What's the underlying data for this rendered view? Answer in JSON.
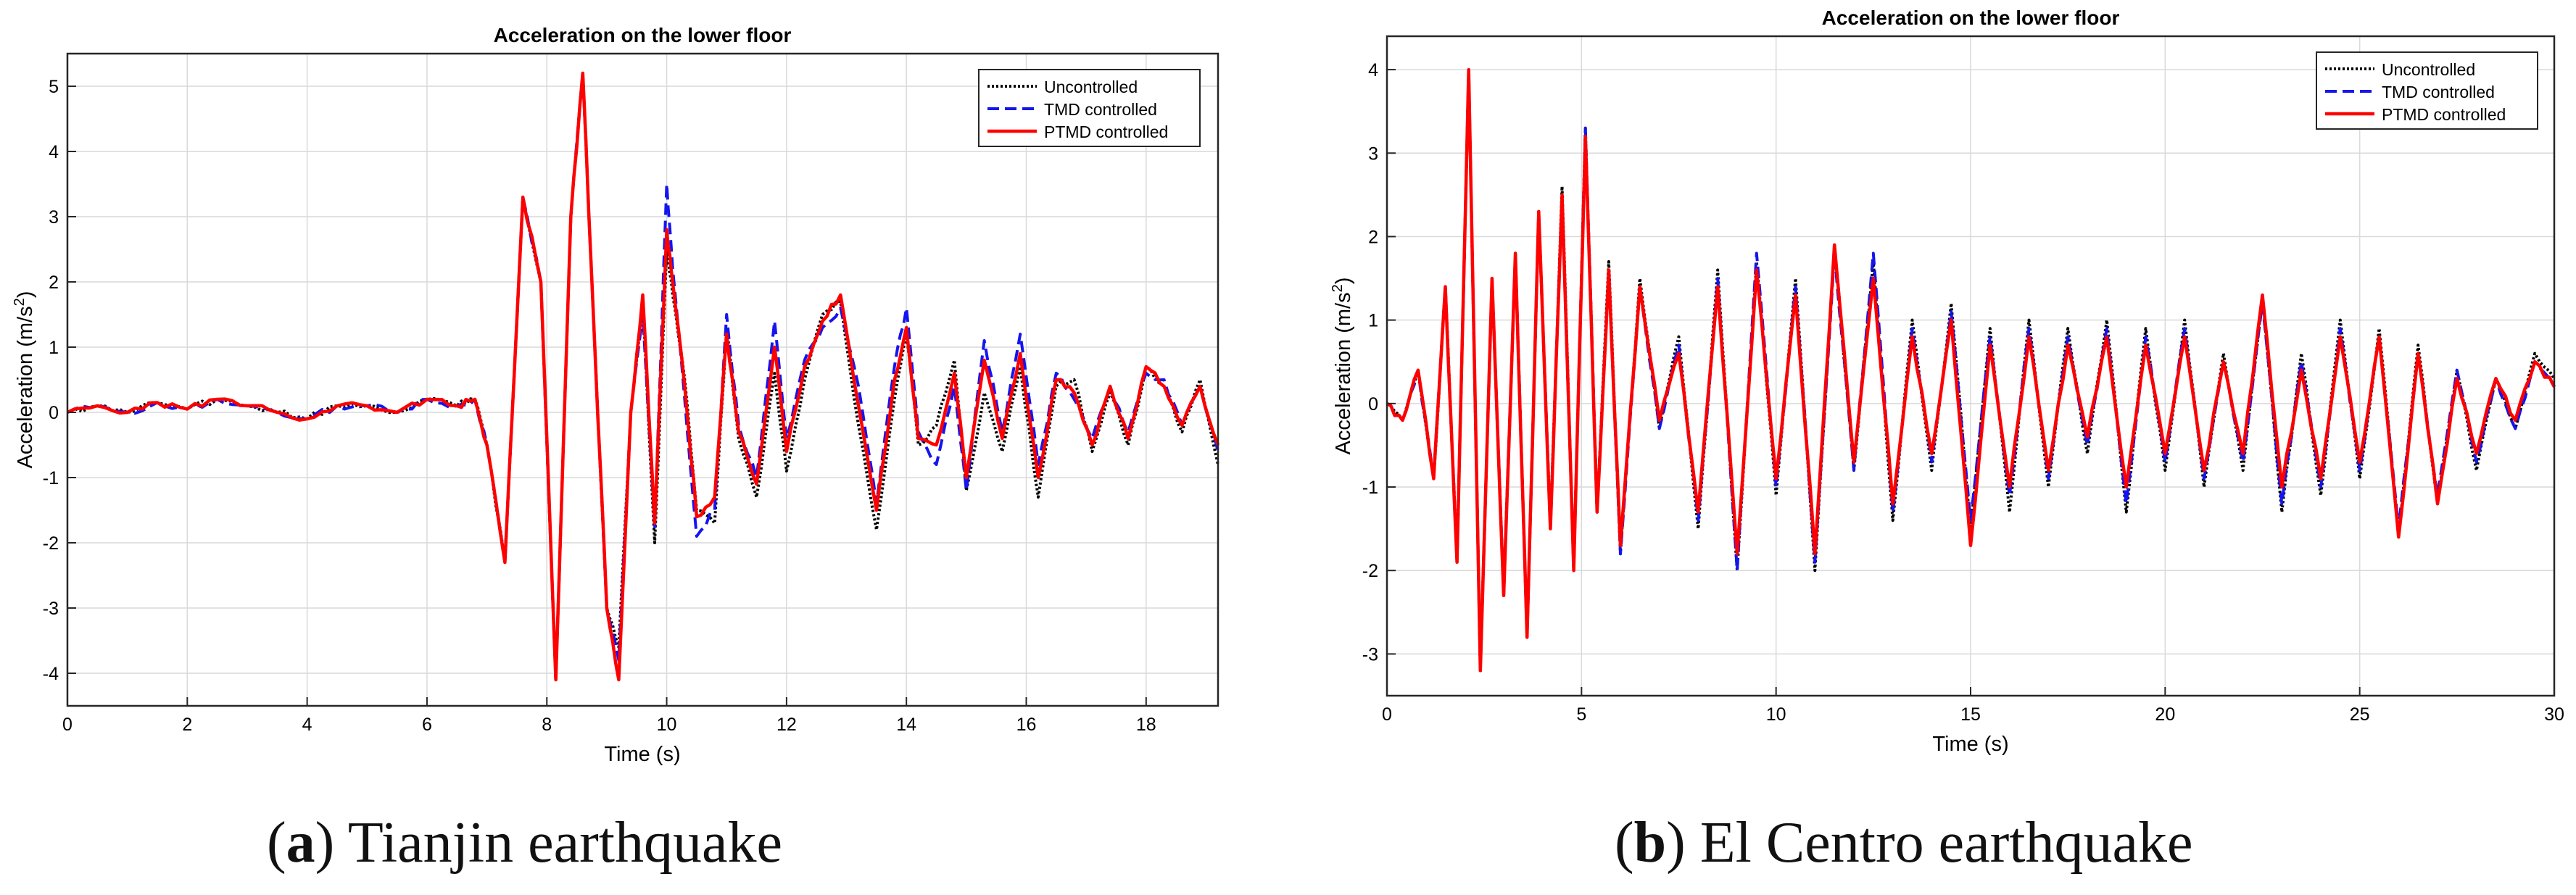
{
  "colors": {
    "uncontrolled": "#000000",
    "tmd": "#1515ee",
    "ptmd": "#ff0000",
    "grid": "#d9d9d9",
    "axis": "#262626"
  },
  "captions": [
    {
      "label": "a",
      "text": ") Tianjin earthquake"
    },
    {
      "label": "b",
      "text": ") El Centro earthquake"
    }
  ],
  "chart_data": [
    {
      "type": "line",
      "title": "Acceleration on the lower floor",
      "xlabel": "Time (s)",
      "ylabel_main": "Acceleration (m/s",
      "ylabel_sup": "2",
      "ylabel_tail": ")",
      "xlim": [
        0,
        19.2
      ],
      "ylim": [
        -4.5,
        5.5
      ],
      "xticks": [
        0,
        2,
        4,
        6,
        8,
        10,
        12,
        14,
        16,
        18
      ],
      "yticks": [
        -4,
        -3,
        -2,
        -1,
        0,
        1,
        2,
        3,
        4,
        5
      ],
      "grid": true,
      "legend_position": "top-right",
      "legend": [
        "Uncontrolled",
        "TMD controlled",
        "PTMD controlled"
      ],
      "series": [
        {
          "name": "Uncontrolled",
          "style": "dotted",
          "x": [
            0,
            0.5,
            1,
            1.5,
            2,
            2.5,
            3,
            3.5,
            4,
            4.5,
            5,
            5.5,
            6,
            6.5,
            6.8,
            7,
            7.3,
            7.6,
            7.9,
            8.15,
            8.4,
            8.6,
            8.8,
            9,
            9.2,
            9.4,
            9.6,
            9.8,
            10,
            10.1,
            10.3,
            10.5,
            10.8,
            11,
            11.2,
            11.5,
            11.8,
            12,
            12.3,
            12.6,
            12.9,
            13.2,
            13.5,
            13.8,
            14,
            14.2,
            14.5,
            14.8,
            15,
            15.3,
            15.6,
            15.9,
            16.2,
            16.5,
            16.8,
            17.1,
            17.4,
            17.7,
            18,
            18.3,
            18.6,
            18.9,
            19.2
          ],
          "y": [
            0,
            0.1,
            0,
            0.15,
            0.05,
            0.2,
            0.1,
            0,
            -0.1,
            0.1,
            0.1,
            0,
            0.2,
            0.1,
            0.2,
            -0.5,
            -2.3,
            3.3,
            2,
            -4.1,
            3,
            5.2,
            1,
            -3,
            -3.6,
            0,
            1.7,
            -2,
            2.5,
            1.8,
            0.5,
            -1.5,
            -1.7,
            1.3,
            -0.4,
            -1.3,
            0.6,
            -0.9,
            0.5,
            1.5,
            1.7,
            -0.2,
            -1.8,
            0.2,
            1.2,
            -0.5,
            -0.2,
            0.8,
            -1.2,
            0.3,
            -0.6,
            0.7,
            -1.3,
            0.4,
            0.5,
            -0.6,
            0.3,
            -0.5,
            0.7,
            0.4,
            -0.3,
            0.5,
            -0.8
          ]
        },
        {
          "name": "TMD controlled",
          "style": "dashed",
          "x": [
            0,
            0.5,
            1,
            1.5,
            2,
            2.5,
            3,
            3.5,
            4,
            4.5,
            5,
            5.5,
            6,
            6.5,
            6.8,
            7,
            7.3,
            7.6,
            7.9,
            8.15,
            8.4,
            8.6,
            8.8,
            9,
            9.2,
            9.4,
            9.6,
            9.8,
            10,
            10.1,
            10.3,
            10.5,
            10.8,
            11,
            11.2,
            11.5,
            11.8,
            12,
            12.3,
            12.6,
            12.9,
            13.2,
            13.5,
            13.8,
            14,
            14.2,
            14.5,
            14.8,
            15,
            15.3,
            15.6,
            15.9,
            16.2,
            16.5,
            16.8,
            17.1,
            17.4,
            17.7,
            18,
            18.3,
            18.6,
            18.9,
            19.2
          ],
          "y": [
            0,
            0.1,
            0,
            0.15,
            0.05,
            0.2,
            0.1,
            0,
            -0.1,
            0.1,
            0.1,
            0,
            0.2,
            0.1,
            0.2,
            -0.5,
            -2.3,
            3.3,
            2,
            -4.1,
            3,
            5.2,
            1,
            -3,
            -3.8,
            0,
            1.5,
            -1.8,
            3.5,
            2.2,
            0.2,
            -1.9,
            -1.5,
            1.5,
            -0.2,
            -1,
            1.4,
            -0.4,
            0.8,
            1.3,
            1.6,
            0.4,
            -1.4,
            0.7,
            1.6,
            -0.3,
            -0.8,
            0.4,
            -1.2,
            1.1,
            -0.3,
            1.2,
            -0.8,
            0.6,
            0.2,
            -0.4,
            0.4,
            -0.3,
            0.6,
            0.5,
            -0.2,
            0.4,
            -0.6
          ]
        },
        {
          "name": "PTMD controlled",
          "style": "solid",
          "x": [
            0,
            0.5,
            1,
            1.5,
            2,
            2.5,
            3,
            3.5,
            4,
            4.5,
            5,
            5.5,
            6,
            6.5,
            6.8,
            7,
            7.3,
            7.6,
            7.9,
            8.15,
            8.4,
            8.6,
            8.8,
            9,
            9.2,
            9.4,
            9.6,
            9.8,
            10,
            10.1,
            10.3,
            10.5,
            10.8,
            11,
            11.2,
            11.5,
            11.8,
            12,
            12.3,
            12.6,
            12.9,
            13.2,
            13.5,
            13.8,
            14,
            14.2,
            14.5,
            14.8,
            15,
            15.3,
            15.6,
            15.9,
            16.2,
            16.5,
            16.8,
            17.1,
            17.4,
            17.7,
            18,
            18.3,
            18.6,
            18.9,
            19.2
          ],
          "y": [
            0,
            0.1,
            0,
            0.15,
            0.05,
            0.2,
            0.1,
            0,
            -0.1,
            0.1,
            0.1,
            0,
            0.2,
            0.1,
            0.2,
            -0.5,
            -2.3,
            3.3,
            2,
            -4.1,
            3,
            5.2,
            1,
            -3,
            -4.1,
            0,
            1.8,
            -1.7,
            2.8,
            2,
            0.4,
            -1.6,
            -1.3,
            1.2,
            -0.3,
            -1.1,
            1,
            -0.6,
            0.7,
            1.4,
            1.8,
            0.1,
            -1.5,
            0.5,
            1.3,
            -0.4,
            -0.5,
            0.6,
            -1,
            0.8,
            -0.4,
            0.9,
            -1,
            0.5,
            0.3,
            -0.5,
            0.4,
            -0.4,
            0.7,
            0.4,
            -0.2,
            0.4,
            -0.5
          ]
        }
      ]
    },
    {
      "type": "line",
      "title": "Acceleration on the lower floor",
      "xlabel": "Time (s)",
      "ylabel_main": "Acceleration (m/s",
      "ylabel_sup": "2",
      "ylabel_tail": ")",
      "xlim": [
        0,
        30
      ],
      "ylim": [
        -3.5,
        4.4
      ],
      "xticks": [
        0,
        5,
        10,
        15,
        20,
        25,
        30
      ],
      "yticks": [
        -3,
        -2,
        -1,
        0,
        1,
        2,
        3,
        4
      ],
      "grid": true,
      "legend_position": "top-right",
      "legend": [
        "Uncontrolled",
        "TMD controlled",
        "PTMD controlled"
      ],
      "series": [
        {
          "name": "Uncontrolled",
          "style": "dotted",
          "x": [
            0,
            0.4,
            0.8,
            1.2,
            1.5,
            1.8,
            2.1,
            2.4,
            2.7,
            3,
            3.3,
            3.6,
            3.9,
            4.2,
            4.5,
            4.8,
            5.1,
            5.4,
            5.7,
            6,
            6.5,
            7,
            7.5,
            8,
            8.5,
            9,
            9.5,
            10,
            10.5,
            11,
            11.5,
            12,
            12.5,
            13,
            13.5,
            14,
            14.5,
            15,
            15.5,
            16,
            16.5,
            17,
            17.5,
            18,
            18.5,
            19,
            19.5,
            20,
            20.5,
            21,
            21.5,
            22,
            22.5,
            23,
            23.5,
            24,
            24.5,
            25,
            25.5,
            26,
            26.5,
            27,
            27.5,
            28,
            28.5,
            29,
            29.5,
            30
          ],
          "y": [
            0,
            -0.2,
            0.4,
            -0.9,
            1.4,
            -1.9,
            4,
            -3.2,
            1.5,
            -2.3,
            1.8,
            -2.8,
            2.3,
            -1.5,
            2.6,
            -2,
            3.3,
            -1.3,
            1.7,
            -1.8,
            1.5,
            -0.3,
            0.8,
            -1.5,
            1.6,
            -2,
            1.7,
            -1.1,
            1.5,
            -2,
            1.9,
            -0.8,
            1.7,
            -1.4,
            1,
            -0.8,
            1.2,
            -1.5,
            0.9,
            -1.3,
            1,
            -1,
            0.9,
            -0.6,
            1,
            -1.3,
            0.9,
            -0.8,
            1,
            -1,
            0.6,
            -0.8,
            1.3,
            -1.3,
            0.6,
            -1.1,
            1,
            -0.9,
            0.9,
            -1.6,
            0.7,
            -1.2,
            0.4,
            -0.8,
            0.3,
            -0.3,
            0.6,
            0.3
          ]
        },
        {
          "name": "TMD controlled",
          "style": "dashed",
          "x": [
            0,
            0.4,
            0.8,
            1.2,
            1.5,
            1.8,
            2.1,
            2.4,
            2.7,
            3,
            3.3,
            3.6,
            3.9,
            4.2,
            4.5,
            4.8,
            5.1,
            5.4,
            5.7,
            6,
            6.5,
            7,
            7.5,
            8,
            8.5,
            9,
            9.5,
            10,
            10.5,
            11,
            11.5,
            12,
            12.5,
            13,
            13.5,
            14,
            14.5,
            15,
            15.5,
            16,
            16.5,
            17,
            17.5,
            18,
            18.5,
            19,
            19.5,
            20,
            20.5,
            21,
            21.5,
            22,
            22.5,
            23,
            23.5,
            24,
            24.5,
            25,
            25.5,
            26,
            26.5,
            27,
            27.5,
            28,
            28.5,
            29,
            29.5,
            30
          ],
          "y": [
            0,
            -0.2,
            0.4,
            -0.9,
            1.4,
            -1.9,
            4,
            -3.2,
            1.5,
            -2.3,
            1.8,
            -2.8,
            2.3,
            -1.5,
            2.5,
            -2,
            3.3,
            -1.3,
            1.6,
            -1.8,
            1.4,
            -0.3,
            0.7,
            -1.4,
            1.5,
            -2,
            1.8,
            -1,
            1.4,
            -1.9,
            1.8,
            -0.8,
            1.8,
            -1.3,
            0.9,
            -0.7,
            1.1,
            -1.4,
            0.8,
            -1.1,
            0.9,
            -0.9,
            0.8,
            -0.5,
            0.9,
            -1.2,
            0.8,
            -0.7,
            0.9,
            -0.9,
            0.5,
            -0.7,
            1.2,
            -1.2,
            0.5,
            -1,
            0.9,
            -0.8,
            0.8,
            -1.5,
            0.6,
            -1.1,
            0.4,
            -0.7,
            0.3,
            -0.3,
            0.5,
            0.2
          ]
        },
        {
          "name": "PTMD controlled",
          "style": "solid",
          "x": [
            0,
            0.4,
            0.8,
            1.2,
            1.5,
            1.8,
            2.1,
            2.4,
            2.7,
            3,
            3.3,
            3.6,
            3.9,
            4.2,
            4.5,
            4.8,
            5.1,
            5.4,
            5.7,
            6,
            6.5,
            7,
            7.5,
            8,
            8.5,
            9,
            9.5,
            10,
            10.5,
            11,
            11.5,
            12,
            12.5,
            13,
            13.5,
            14,
            14.5,
            15,
            15.5,
            16,
            16.5,
            17,
            17.5,
            18,
            18.5,
            19,
            19.5,
            20,
            20.5,
            21,
            21.5,
            22,
            22.5,
            23,
            23.5,
            24,
            24.5,
            25,
            25.5,
            26,
            26.5,
            27,
            27.5,
            28,
            28.5,
            29,
            29.5,
            30
          ],
          "y": [
            0,
            -0.2,
            0.4,
            -0.9,
            1.4,
            -1.9,
            4,
            -3.2,
            1.5,
            -2.3,
            1.8,
            -2.8,
            2.3,
            -1.5,
            2.5,
            -2,
            3.2,
            -1.3,
            1.6,
            -1.7,
            1.4,
            -0.2,
            0.6,
            -1.3,
            1.4,
            -1.8,
            1.6,
            -0.9,
            1.3,
            -1.8,
            1.9,
            -0.7,
            1.5,
            -1.2,
            0.8,
            -0.6,
            1,
            -1.7,
            0.7,
            -1,
            0.8,
            -0.8,
            0.7,
            -0.4,
            0.8,
            -1,
            0.7,
            -0.6,
            0.8,
            -0.8,
            0.5,
            -0.6,
            1.3,
            -1,
            0.4,
            -0.9,
            0.8,
            -0.7,
            0.8,
            -1.6,
            0.6,
            -1.2,
            0.3,
            -0.6,
            0.3,
            -0.2,
            0.5,
            0.2
          ]
        }
      ]
    }
  ]
}
